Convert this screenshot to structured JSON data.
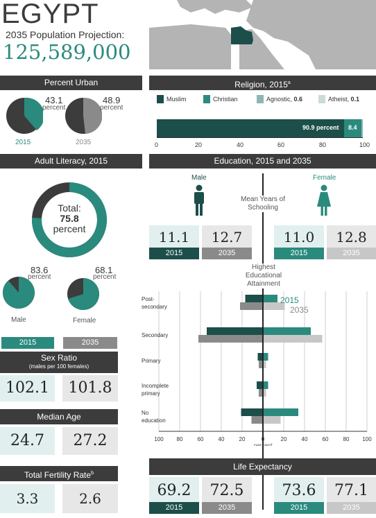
{
  "country": "EGYPT",
  "projection_label": "2035 Population Projection:",
  "projection_value": "125,589,000",
  "colors": {
    "teal": "#2a8a7d",
    "dark_teal": "#1c4e4a",
    "dark": "#3d3c3c",
    "gray": "#8a8a8a",
    "light_gray": "#c7c7c7",
    "box_teal": "#e1efef",
    "box_gray": "#e7e7e7",
    "map_land": "#b4b4b4"
  },
  "urban": {
    "title": "Percent Urban",
    "year_2015": "2015",
    "year_2035": "2035",
    "value_2015": "43.1",
    "value_2035": "48.9",
    "unit": "percent"
  },
  "literacy": {
    "title": "Adult Literacy, 2015",
    "total_label": "Total:",
    "total_value": "75.8",
    "total_unit": "percent",
    "male_value": "83.6",
    "female_value": "68.1",
    "unit": "percent",
    "male_label": "Male",
    "female_label": "Female"
  },
  "legend_years": {
    "y2015": "2015",
    "y2035": "2035"
  },
  "sex_ratio": {
    "title": "Sex Ratio",
    "subtitle": "(males per 100 females)",
    "value_2015": "102.1",
    "value_2035": "101.8"
  },
  "median_age": {
    "title": "Median Age",
    "value_2015": "24.7",
    "value_2035": "27.2"
  },
  "fertility": {
    "title": "Total Fertility Rate",
    "title_sup": "b",
    "value_2015": "3.3",
    "value_2035": "2.6"
  },
  "religion": {
    "title": "Religion, 2015",
    "title_sup": "a",
    "legend": [
      {
        "label": "Muslim",
        "extra": "",
        "color": "#1c4e4a"
      },
      {
        "label": "Christian",
        "extra": "",
        "color": "#2a8a7d"
      },
      {
        "label": "Agnostic,",
        "extra": "0.6",
        "color": "#8fb5b0"
      },
      {
        "label": "Atheist,",
        "extra": "0.1",
        "color": "#c9dcda"
      }
    ],
    "bar_label_muslim": "90.9 percent",
    "bar_label_christian": "8.4",
    "axis_ticks": [
      "0",
      "20",
      "40",
      "60",
      "80",
      "100"
    ]
  },
  "education": {
    "title": "Education, 2015 and 2035",
    "male_label": "Male",
    "female_label": "Female",
    "mean_years_label_1": "Mean Years of",
    "mean_years_label_2": "Schooling",
    "male_2015": "11.1",
    "male_2035": "12.7",
    "female_2015": "11.0",
    "female_2035": "12.8",
    "year_2015": "2015",
    "year_2035": "2035",
    "attain_label_1": "Highest",
    "attain_label_2": "Educational",
    "attain_label_3": "Attainment",
    "legend_2015": "2015",
    "legend_2035": "2035",
    "axis_unit": "percent",
    "axis_ticks": [
      "100",
      "80",
      "60",
      "40",
      "20",
      "0",
      "20",
      "40",
      "60",
      "80",
      "100"
    ]
  },
  "life_expectancy": {
    "title": "Life Expectancy",
    "male_2015": "69.2",
    "male_2035": "72.5",
    "female_2015": "73.6",
    "female_2035": "77.1",
    "year_2015": "2015",
    "year_2035": "2035"
  },
  "chart_data": [
    {
      "type": "pie",
      "title": "Percent Urban",
      "categories": [
        "2015",
        "2035"
      ],
      "values": [
        43.1,
        48.9
      ],
      "unit": "percent"
    },
    {
      "type": "pie",
      "title": "Adult Literacy, 2015",
      "categories": [
        "Total",
        "Male",
        "Female"
      ],
      "values": [
        75.8,
        83.6,
        68.1
      ],
      "unit": "percent"
    },
    {
      "type": "bar",
      "title": "Religion, 2015",
      "categories": [
        "Muslim",
        "Christian",
        "Agnostic",
        "Atheist"
      ],
      "values": [
        90.9,
        8.4,
        0.6,
        0.1
      ],
      "xlim": [
        0,
        100
      ]
    },
    {
      "type": "bar",
      "title": "Highest Educational Attainment",
      "categories": [
        "Post-secondary",
        "Secondary",
        "Primary",
        "Incomplete primary",
        "No education"
      ],
      "xlabel": "percent",
      "xlim": [
        -100,
        100
      ],
      "series": [
        {
          "name": "Male 2015",
          "values": [
            17,
            54,
            5,
            6,
            21
          ]
        },
        {
          "name": "Male 2035",
          "values": [
            22,
            62,
            4,
            4,
            11
          ]
        },
        {
          "name": "Female 2015",
          "values": [
            14,
            46,
            5,
            5,
            34
          ]
        },
        {
          "name": "Female 2035",
          "values": [
            21,
            57,
            3,
            3,
            17
          ]
        }
      ]
    }
  ]
}
